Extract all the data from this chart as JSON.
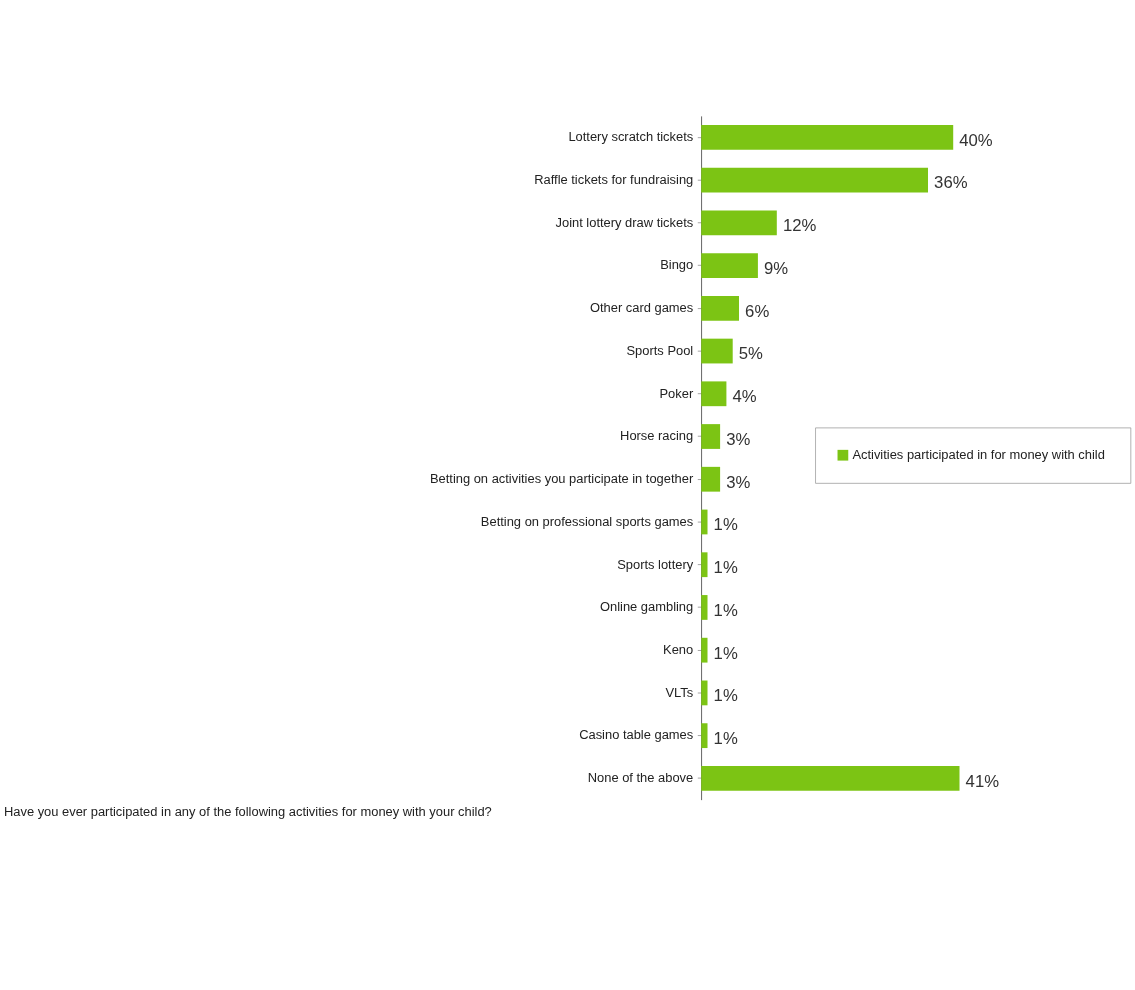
{
  "chart_data": {
    "type": "bar",
    "orientation": "horizontal",
    "legend": "right",
    "categories": [
      "Lottery scratch tickets",
      "Raffle tickets for fundraising",
      "Joint lottery draw tickets",
      "Bingo",
      "Other card games",
      "Sports Pool",
      "Poker",
      "Horse racing",
      "Betting on activities you participate in together",
      "Betting on professional sports games",
      "Sports lottery",
      "Online gambling",
      "Keno",
      "VLTs",
      "Casino table games",
      "None of the above"
    ],
    "series": [
      {
        "name": "Activities participated in for money  with child",
        "color": "#7cc414",
        "values": [
          40,
          36,
          12,
          9,
          6,
          5,
          4,
          3,
          3,
          1,
          1,
          1,
          1,
          1,
          1,
          41
        ],
        "value_labels": [
          "40%",
          "36%",
          "12%",
          "9%",
          "6%",
          "5%",
          "4%",
          "3%",
          "3%",
          "1%",
          "1%",
          "1%",
          "1%",
          "1%",
          "1%",
          "41%"
        ]
      }
    ],
    "annotations": [
      "Have you ever participated in any of the following activities for money with your child?"
    ]
  }
}
